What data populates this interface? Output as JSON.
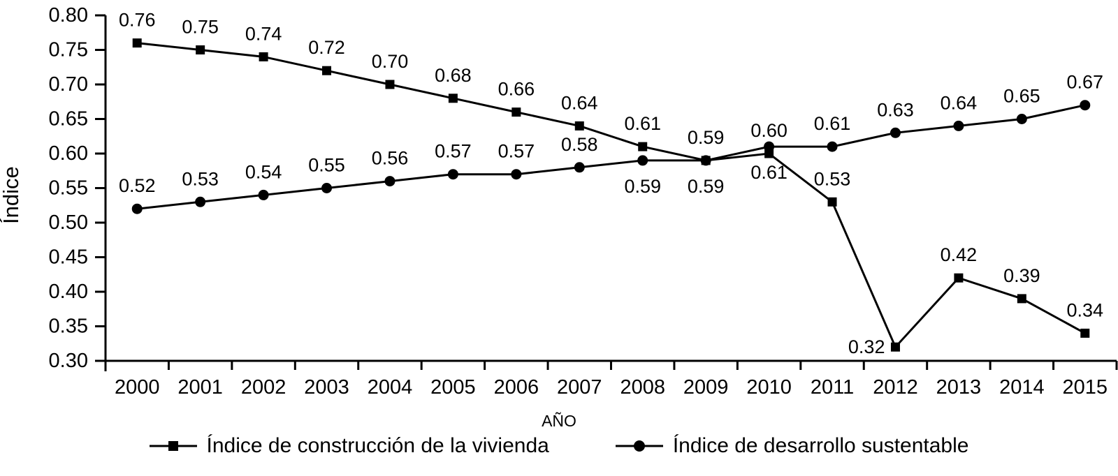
{
  "chart_data": {
    "type": "line",
    "title": "",
    "xlabel": "AÑO",
    "ylabel": "Índice",
    "categories": [
      "2000",
      "2001",
      "2002",
      "2003",
      "2004",
      "2005",
      "2006",
      "2007",
      "2008",
      "2009",
      "2010",
      "2011",
      "2012",
      "2013",
      "2014",
      "2015"
    ],
    "ylim": [
      0.3,
      0.8
    ],
    "ytick_step": 0.05,
    "ytick_labels": [
      "0.80",
      "0.75",
      "0.70",
      "0.65",
      "0.60",
      "0.55",
      "0.50",
      "0.45",
      "0.40",
      "0.35",
      "0.30"
    ],
    "grid": false,
    "legend_position": "bottom",
    "series": [
      {
        "name": "Índice de construcción de la vivienda",
        "marker": "square",
        "values": [
          0.76,
          0.75,
          0.74,
          0.72,
          0.7,
          0.68,
          0.66,
          0.64,
          0.61,
          0.59,
          0.6,
          0.53,
          0.32,
          0.42,
          0.39,
          0.34
        ],
        "data_labels": [
          "0.76",
          "0.75",
          "0.74",
          "0.72",
          "0.70",
          "0.68",
          "0.66",
          "0.64",
          "0.61",
          "0.59",
          "0.60",
          "0.53",
          "0.32",
          "0.42",
          "0.39",
          "0.34"
        ],
        "label_positions": [
          "above",
          "above",
          "above",
          "above",
          "above",
          "above",
          "above",
          "above",
          "above",
          "above",
          "above",
          "above",
          "left",
          "above",
          "above",
          "above"
        ]
      },
      {
        "name": "Índice de desarrollo sustentable",
        "marker": "circle",
        "values": [
          0.52,
          0.53,
          0.54,
          0.55,
          0.56,
          0.57,
          0.57,
          0.58,
          0.59,
          0.59,
          0.61,
          0.61,
          0.63,
          0.64,
          0.65,
          0.67
        ],
        "data_labels": [
          "0.52",
          "0.53",
          "0.54",
          "0.55",
          "0.56",
          "0.57",
          "0.57",
          "0.58",
          "0.59",
          "0.59",
          "0.61",
          "0.61",
          "0.63",
          "0.64",
          "0.65",
          "0.67"
        ],
        "label_positions": [
          "above",
          "above",
          "above",
          "above",
          "above",
          "above",
          "above",
          "above",
          "below",
          "below",
          "below",
          "above",
          "above",
          "above",
          "above",
          "above"
        ]
      }
    ],
    "colors": {
      "series": "#000000",
      "axis": "#000000",
      "text": "#000000",
      "background": "#ffffff"
    }
  }
}
